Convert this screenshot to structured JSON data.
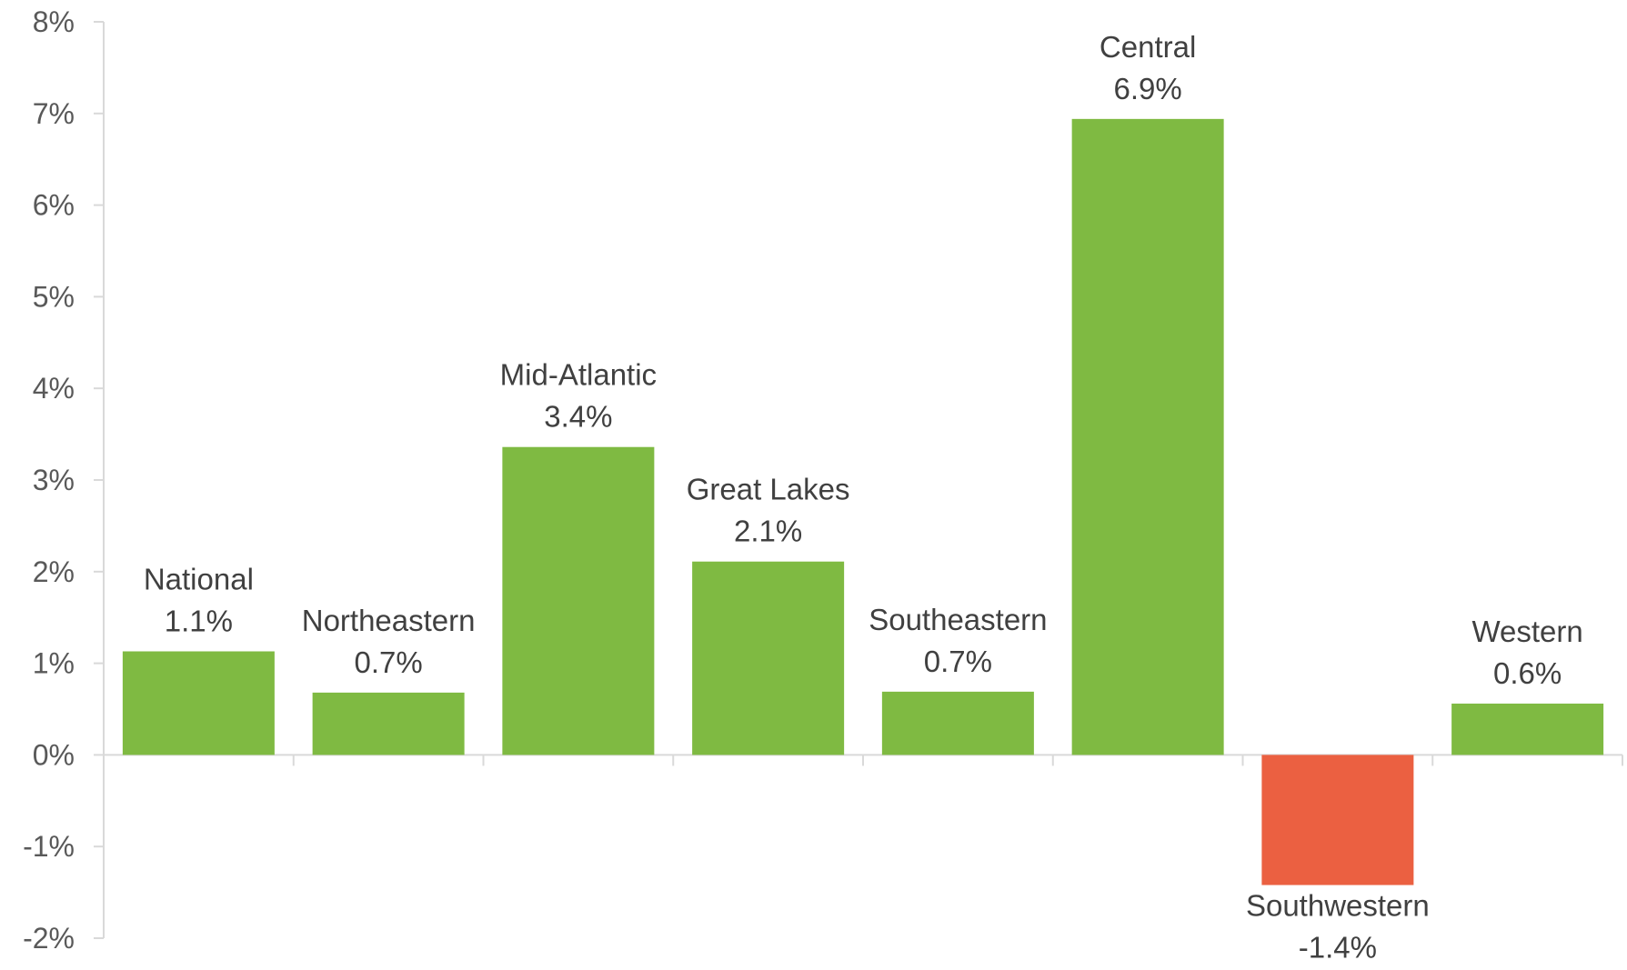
{
  "chart_data": {
    "type": "bar",
    "title": "",
    "xlabel": "",
    "ylabel": "",
    "categories": [
      "National",
      "Northeastern",
      "Mid-Atlantic",
      "Great Lakes",
      "Southeastern",
      "Central",
      "Southwestern",
      "Western"
    ],
    "values": [
      1.13,
      0.68,
      3.36,
      2.11,
      0.69,
      6.94,
      -1.42,
      0.56
    ],
    "value_labels": [
      "1.1%",
      "0.7%",
      "3.4%",
      "2.1%",
      "0.7%",
      "6.9%",
      "-1.4%",
      "0.6%"
    ],
    "ylim": [
      -2,
      8
    ],
    "yticks": [
      -2,
      -1,
      0,
      1,
      2,
      3,
      4,
      5,
      6,
      7,
      8
    ],
    "ytick_labels": [
      "-2%",
      "-1%",
      "0%",
      "1%",
      "2%",
      "3%",
      "4%",
      "5%",
      "6%",
      "7%",
      "8%"
    ],
    "grid": false,
    "legend": "none",
    "colors": {
      "positive": "#7fba42",
      "negative": "#eb6041",
      "axis": "#d9d9d9",
      "text": "#404040",
      "tick_text": "#595959"
    }
  }
}
